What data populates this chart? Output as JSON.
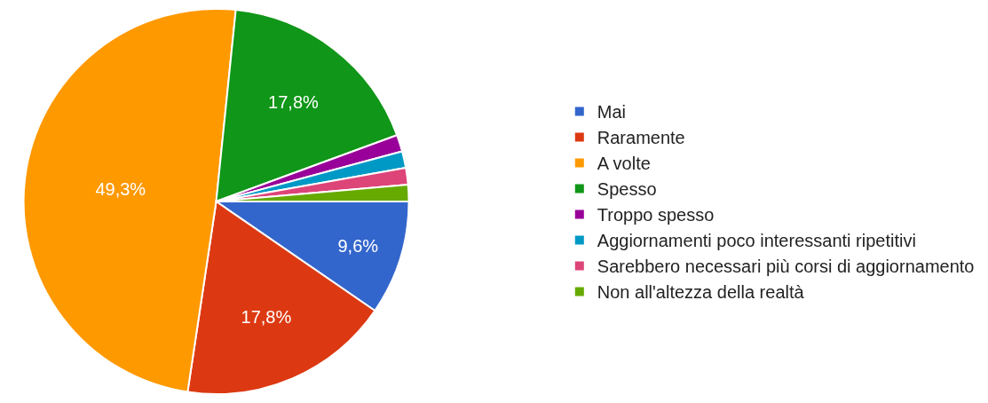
{
  "chart_data": {
    "type": "pie",
    "categories": [
      "Mai",
      "Raramente",
      "A volte",
      "Spesso",
      "Troppo spesso",
      "Aggiornamenti poco interessanti ripetitivi",
      "Sarebbero necessari più corsi di aggiornamento",
      "Non all'altezza della realtà"
    ],
    "values": [
      9.6,
      17.8,
      49.3,
      17.8,
      1.4,
      1.4,
      1.4,
      1.4
    ],
    "value_labels": [
      "9,6%",
      "17,8%",
      "49,3%",
      "17,8%",
      null,
      null,
      null,
      null
    ],
    "colors": [
      "#3366cc",
      "#dc3912",
      "#ff9900",
      "#109618",
      "#990099",
      "#0099c6",
      "#dd4477",
      "#66aa00"
    ],
    "legend": "right"
  }
}
